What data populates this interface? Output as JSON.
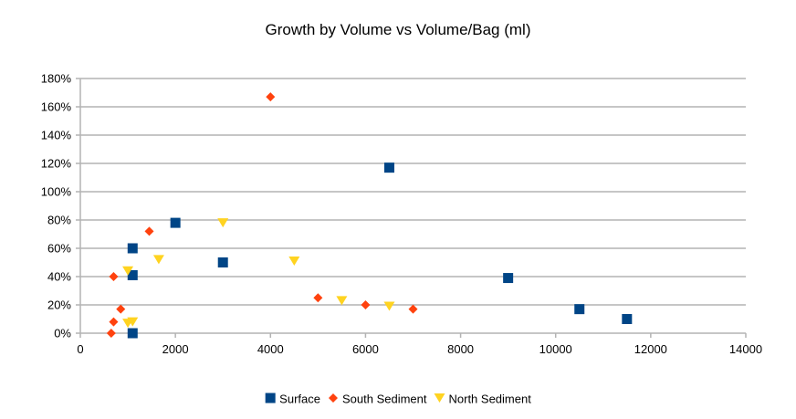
{
  "chart_data": {
    "type": "scatter",
    "title": "Growth by Volume vs Volume/Bag (ml)",
    "xlabel": "",
    "ylabel": "",
    "xlim": [
      0,
      14000
    ],
    "ylim": [
      0,
      1.8
    ],
    "x_ticks": [
      0,
      2000,
      4000,
      6000,
      8000,
      10000,
      12000,
      14000
    ],
    "x_tick_labels": [
      "0",
      "2000",
      "4000",
      "6000",
      "8000",
      "10000",
      "12000",
      "14000"
    ],
    "y_ticks": [
      0,
      0.2,
      0.4,
      0.6,
      0.8,
      1.0,
      1.2,
      1.4,
      1.6,
      1.8
    ],
    "y_tick_labels": [
      "0%",
      "20%",
      "40%",
      "60%",
      "80%",
      "100%",
      "120%",
      "140%",
      "160%",
      "180%"
    ],
    "grid": "horizontal",
    "legend_position": "bottom",
    "series": [
      {
        "name": "Surface",
        "marker": "square",
        "color": "#004586",
        "points": [
          {
            "x": 1100,
            "y": 0.6
          },
          {
            "x": 1100,
            "y": 0.41
          },
          {
            "x": 1100,
            "y": 0.0
          },
          {
            "x": 2000,
            "y": 0.78
          },
          {
            "x": 3000,
            "y": 0.5
          },
          {
            "x": 6500,
            "y": 1.17
          },
          {
            "x": 9000,
            "y": 0.39
          },
          {
            "x": 10500,
            "y": 0.17
          },
          {
            "x": 11500,
            "y": 0.1
          }
        ]
      },
      {
        "name": "South Sediment",
        "marker": "diamond",
        "color": "#ff420e",
        "points": [
          {
            "x": 700,
            "y": 0.4
          },
          {
            "x": 700,
            "y": 0.08
          },
          {
            "x": 650,
            "y": 0.0
          },
          {
            "x": 850,
            "y": 0.17
          },
          {
            "x": 1450,
            "y": 0.72
          },
          {
            "x": 4000,
            "y": 1.67
          },
          {
            "x": 5000,
            "y": 0.25
          },
          {
            "x": 6000,
            "y": 0.2
          },
          {
            "x": 7000,
            "y": 0.17
          }
        ]
      },
      {
        "name": "North Sediment",
        "marker": "triangle-down",
        "color": "#ffd320",
        "points": [
          {
            "x": 1000,
            "y": 0.44
          },
          {
            "x": 1000,
            "y": 0.07
          },
          {
            "x": 1100,
            "y": 0.08
          },
          {
            "x": 1650,
            "y": 0.52
          },
          {
            "x": 3000,
            "y": 0.78
          },
          {
            "x": 4500,
            "y": 0.51
          },
          {
            "x": 5500,
            "y": 0.23
          },
          {
            "x": 6500,
            "y": 0.19
          }
        ]
      }
    ]
  }
}
